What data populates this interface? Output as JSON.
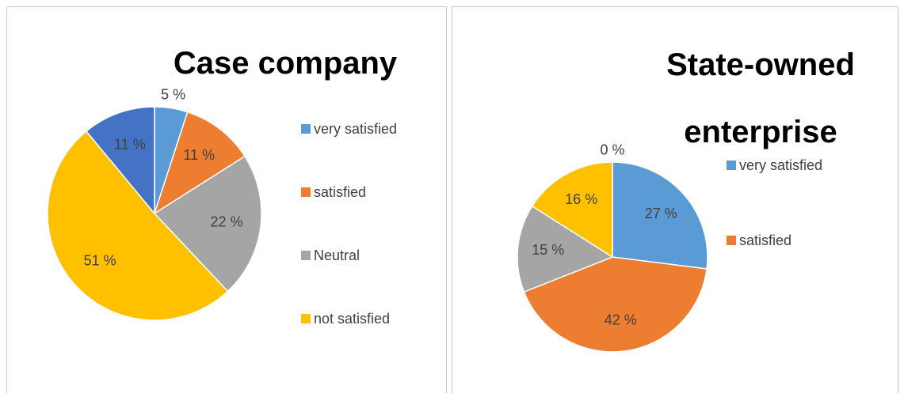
{
  "chart_data": [
    {
      "type": "pie",
      "title": "Case company",
      "categories": [
        "very satisfied",
        "satisfied",
        "Neutral",
        "not satisfied",
        null
      ],
      "values": [
        5,
        11,
        22,
        51,
        11
      ],
      "value_labels": [
        "5 %",
        "11 %",
        "22 %",
        "51 %",
        "11 %"
      ],
      "colors": [
        "#5b9bd5",
        "#ed7d31",
        "#a5a5a5",
        "#ffc000",
        "#4472c4"
      ],
      "legend": "right"
    },
    {
      "type": "pie",
      "title": "State-owned enterprise",
      "categories": [
        "very satisfied",
        "satisfied",
        null,
        null,
        null
      ],
      "values": [
        27,
        42,
        15,
        16,
        0
      ],
      "value_labels": [
        "27 %",
        "42 %",
        "15 %",
        "16 %",
        "0 %"
      ],
      "colors": [
        "#5b9bd5",
        "#ed7d31",
        "#a5a5a5",
        "#ffc000",
        "#4472c4"
      ],
      "legend": "right"
    }
  ]
}
